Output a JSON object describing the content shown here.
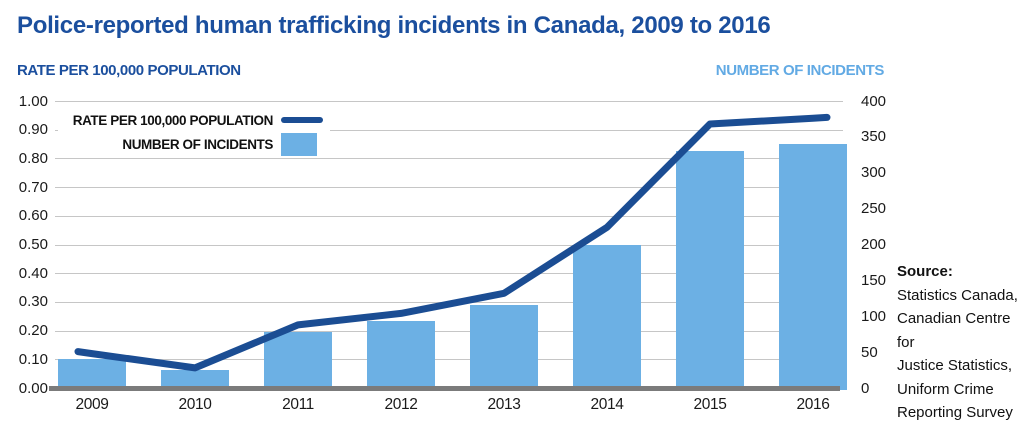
{
  "title": "Police-reported human trafficking incidents in Canada, 2009 to 2016",
  "axes": {
    "left_header": "RATE PER 100,000 POPULATION",
    "right_header": "NUMBER OF INCIDENTS"
  },
  "legend": {
    "rate_label": "RATE PER 100,000  POPULATION",
    "incidents_label": "NUMBER OF INCIDENTS"
  },
  "source": {
    "heading": "Source:",
    "lines": [
      "Statistics Canada,",
      "Canadian Centre for",
      "Justice Statistics,",
      "Uniform Crime",
      "Reporting Survey"
    ]
  },
  "chart_data": {
    "type": "combo_bar_line",
    "title": "Police-reported human trafficking incidents in Canada, 2009 to 2016",
    "categories": [
      "2009",
      "2010",
      "2011",
      "2012",
      "2013",
      "2014",
      "2015",
      "2016"
    ],
    "series": [
      {
        "name": "RATE PER 100,000 POPULATION",
        "type": "line",
        "axis": "left",
        "values": [
          0.12,
          0.07,
          0.22,
          0.26,
          0.33,
          0.56,
          0.92,
          0.94
        ]
      },
      {
        "name": "NUMBER OF INCIDENTS",
        "type": "bar",
        "axis": "right",
        "values": [
          40,
          25,
          78,
          93,
          115,
          200,
          330,
          340
        ]
      }
    ],
    "left_axis": {
      "label": "RATE PER 100,000 POPULATION",
      "min": 0.0,
      "max": 1.0,
      "ticks": [
        "1.00",
        "0.90",
        "0.80",
        "0.70",
        "0.60",
        "0.50",
        "0.40",
        "0.30",
        "0.20",
        "0.10",
        "0.00"
      ]
    },
    "right_axis": {
      "label": "NUMBER OF INCIDENTS",
      "min": 0,
      "max": 400,
      "ticks": [
        "400",
        "350",
        "300",
        "250",
        "200",
        "150",
        "100",
        "50",
        "0"
      ]
    },
    "grid": true,
    "legend_position": "top-left-inside"
  },
  "colors": {
    "title-blue": "#1b4f9e",
    "line-navy": "#1b4d93",
    "bar-blue": "#6cb0e4",
    "light-blue-header": "#62aae4",
    "grid": "#c6c6c6",
    "baseline-gray": "#7b7b7b",
    "text-black": "#1a1a1a"
  }
}
